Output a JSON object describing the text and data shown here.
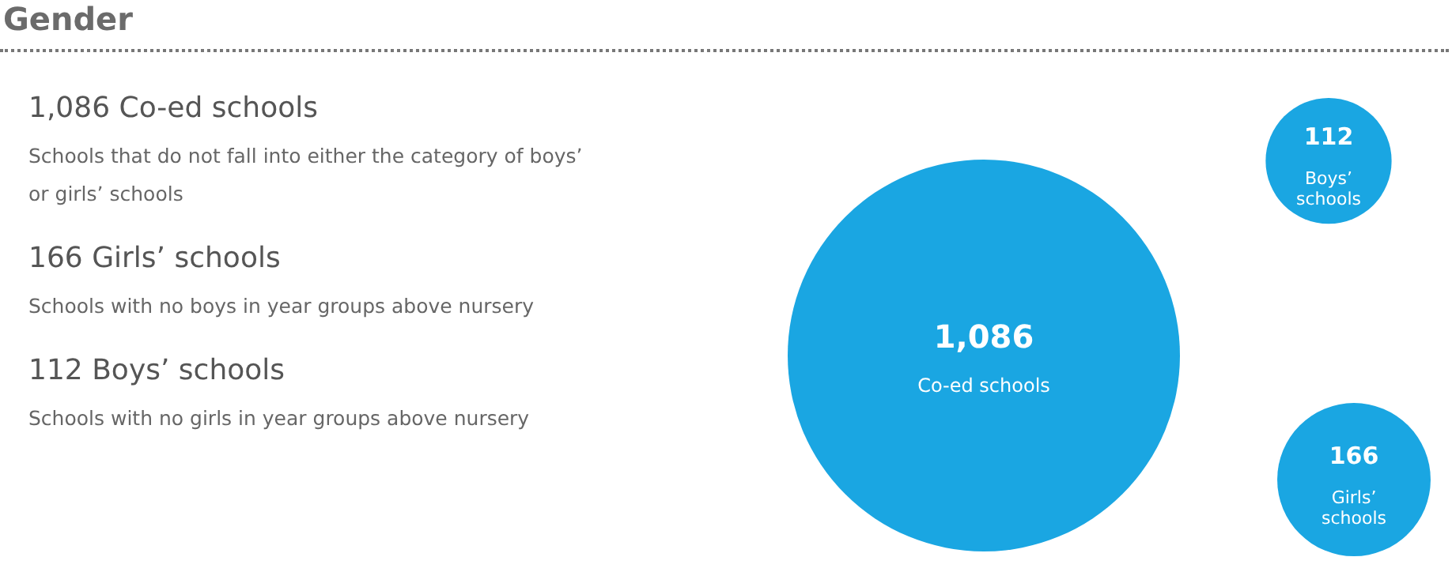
{
  "chart_data": {
    "type": "other",
    "title": "Gender",
    "categories": [
      "Co-ed schools",
      "Boys’ schools",
      "Girls’ schools"
    ],
    "values": [
      1086,
      112,
      166
    ],
    "value_labels": [
      "1,086",
      "112",
      "166"
    ],
    "color": "#1aa6e2",
    "annotations": [
      "1,086 Co-ed schools",
      "Schools that do not fall into either the category of boys’ or girls’ schools",
      "166 Girls’ schools",
      "Schools with no boys in year groups above nursery",
      "112 Boys’ schools",
      "Schools with no girls in year groups above nursery"
    ]
  }
}
